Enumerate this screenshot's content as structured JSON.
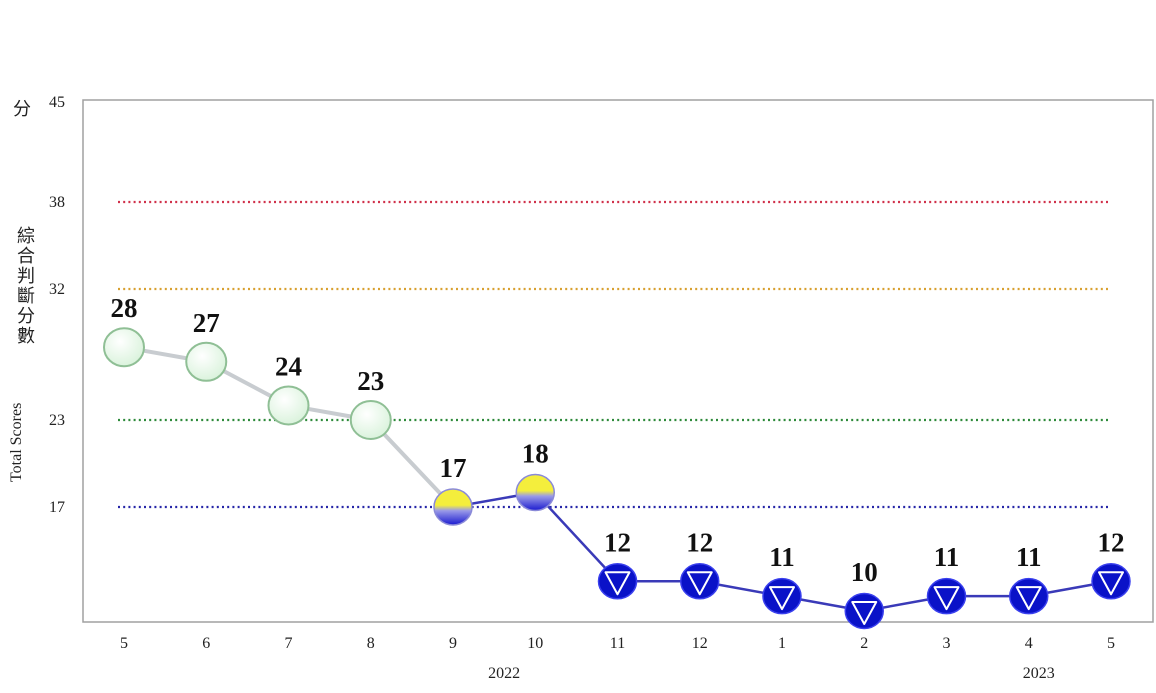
{
  "chart_data": {
    "type": "line",
    "ylabel_unit": "分",
    "ylabel_cn": "綜合判斷分數",
    "ylabel_en": "Total Scores",
    "ylim": [
      10,
      45
    ],
    "yticks": [
      45,
      38,
      32,
      23,
      17
    ],
    "thresholds": [
      {
        "value": 38,
        "color": "#d0304a"
      },
      {
        "value": 32,
        "color": "#d8a030"
      },
      {
        "value": 23,
        "color": "#2e8a3a"
      },
      {
        "value": 17,
        "color": "#2626a8"
      }
    ],
    "categories": [
      "5",
      "6",
      "7",
      "8",
      "9",
      "10",
      "11",
      "12",
      "1",
      "2",
      "3",
      "4",
      "5"
    ],
    "year_labels": [
      {
        "label": "2022",
        "category_index": 4.5
      },
      {
        "label": "2023",
        "category_index": 11
      }
    ],
    "values": [
      28,
      27,
      24,
      23,
      17,
      18,
      12,
      12,
      11,
      10,
      11,
      11,
      12
    ],
    "signals": [
      "green",
      "green",
      "green",
      "green",
      "yellow-blue",
      "yellow-blue",
      "blue",
      "blue",
      "blue",
      "blue",
      "blue",
      "blue",
      "blue"
    ],
    "colors": {
      "green_fill": "#e6f7e6",
      "green_stroke": "#8fbf95",
      "blue_fill": "#0a12c8",
      "yellow": "#f2ea3a",
      "line_gray": "#c8ccd0",
      "line_blue": "#3a3ab8"
    }
  }
}
